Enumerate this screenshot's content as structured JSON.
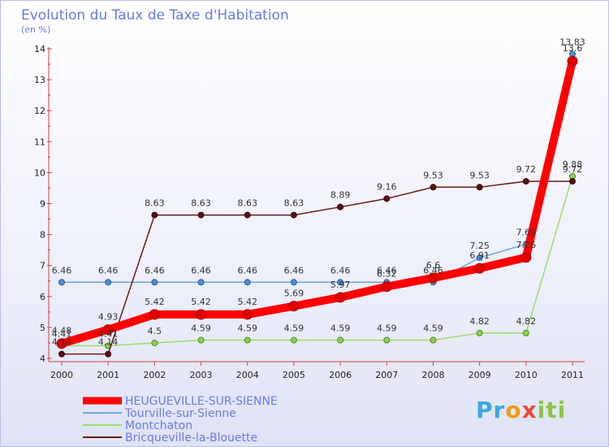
{
  "chart_data": {
    "type": "line",
    "title": "Evolution du Taux de Taxe d'Habitation",
    "subtitle": "(en %)",
    "categories": [
      "2000",
      "2001",
      "2002",
      "2003",
      "2004",
      "2005",
      "2006",
      "2007",
      "2008",
      "2009",
      "2010",
      "2011"
    ],
    "ylim": [
      4,
      14
    ],
    "yticks": [
      4,
      5,
      6,
      7,
      8,
      9,
      10,
      11,
      12,
      13,
      14
    ],
    "series": [
      {
        "name": "HEUGUEVILLE-SUR-SIENNE",
        "color": "#ff0000",
        "labels": [
          "4.48",
          "4.93",
          "5.42",
          "5.42",
          "5.42",
          "5.69",
          "5.97",
          "6.32",
          "6.6",
          "6.91",
          "7.26",
          "13.6"
        ],
        "values": [
          4.48,
          4.93,
          5.42,
          5.42,
          5.42,
          5.69,
          5.97,
          6.32,
          6.6,
          6.91,
          7.26,
          13.6
        ]
      },
      {
        "name": "Tourville-sur-Sienne",
        "color": "#6fa3d8",
        "labels": [
          "6.46",
          "6.46",
          "6.46",
          "6.46",
          "6.46",
          "6.46",
          "6.46",
          "6.46",
          "6.46",
          "7.25",
          "7.69",
          "13.83"
        ],
        "values": [
          6.46,
          6.46,
          6.46,
          6.46,
          6.46,
          6.46,
          6.46,
          6.46,
          6.46,
          7.25,
          7.69,
          13.83
        ]
      },
      {
        "name": "Montchaton",
        "color": "#9bdc6a",
        "labels": [
          "4.41",
          "4.41",
          "4.5",
          "4.59",
          "4.59",
          "4.59",
          "4.59",
          "4.59",
          "4.59",
          "4.82",
          "4.82",
          "9.88"
        ],
        "values": [
          4.41,
          4.41,
          4.5,
          4.59,
          4.59,
          4.59,
          4.59,
          4.59,
          4.59,
          4.82,
          4.82,
          9.88
        ]
      },
      {
        "name": "Bricqueville-la-Blouette",
        "color": "#6b1a1a",
        "labels": [
          "4.14",
          "4.14",
          "8.63",
          "8.63",
          "8.63",
          "8.63",
          "8.89",
          "9.16",
          "9.53",
          "9.53",
          "9.72",
          "9.72"
        ],
        "values": [
          4.14,
          4.14,
          8.63,
          8.63,
          8.63,
          8.63,
          8.89,
          9.16,
          9.53,
          9.53,
          9.72,
          9.72
        ]
      }
    ]
  },
  "logo": {
    "part1": "Pr",
    "part2": "o",
    "part3": "x",
    "part4": "iti"
  }
}
